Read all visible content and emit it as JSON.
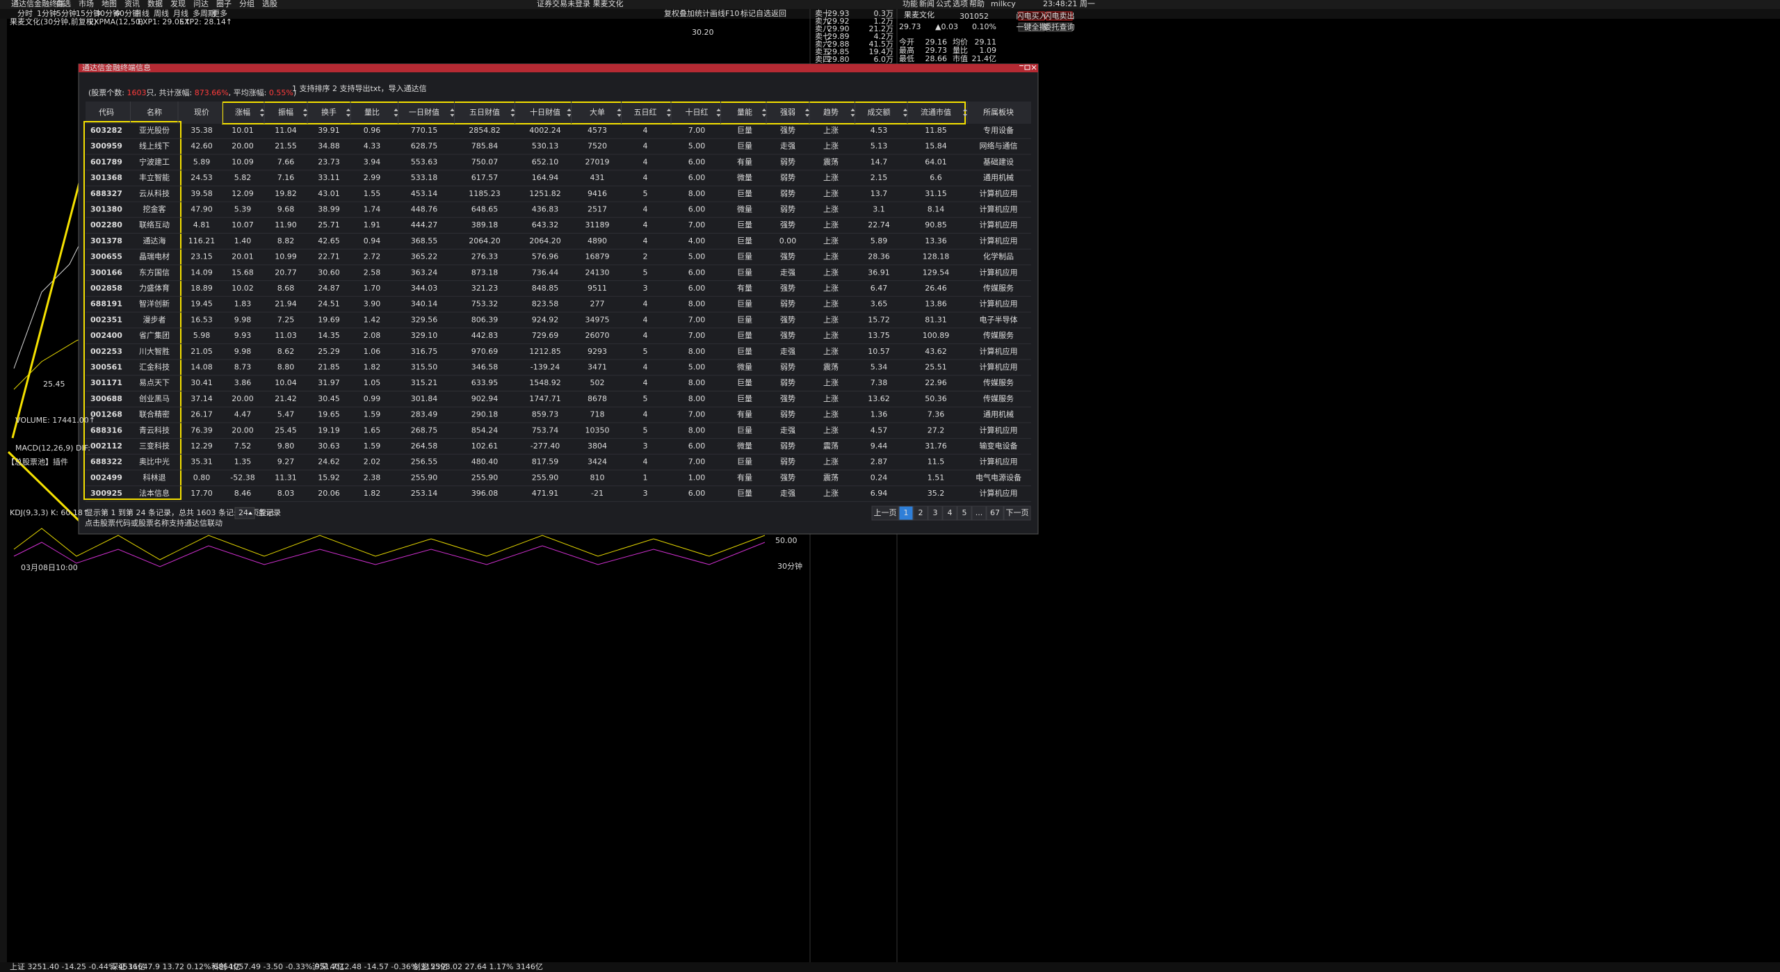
{
  "window": {
    "title": "通达信金融终端",
    "menu": [
      "自选",
      "市场",
      "地图",
      "资讯",
      "数据",
      "发现",
      "问达",
      "圈子",
      "分组",
      "选股"
    ],
    "notice": "证券交易未登录  果麦文化",
    "user": "milkcy",
    "right_menu": [
      "功能",
      "新闻",
      "公式",
      "选项",
      "帮助"
    ],
    "time": "23:48:21 周一"
  },
  "toolbar": {
    "periods": [
      "分时",
      "1分钟",
      "5分钟",
      "15分钟",
      "30分钟",
      "60分钟",
      "日线",
      "周线",
      "月线",
      "多周期",
      "更多"
    ],
    "tools": [
      "复权",
      "叠加",
      "统计",
      "画线",
      "F10",
      "标记",
      "自选",
      "返回"
    ]
  },
  "chart": {
    "title": "果麦文化(30分钟,前复权)",
    "indicator": "EXPMA(12,50)",
    "exp1": "EXP1: 29.05↑",
    "exp2": "EXP2: 28.14↑",
    "price_high": "30.20",
    "price_low": "25.45",
    "volume": "VOLUME: 17441.00↑",
    "macd": "MACD(12,26,9) DIF:",
    "plugin": "【总股票池】插件",
    "kdj": "KDJ(9,3,3) K: 60.18↑",
    "kdj_level": "50.00",
    "period": "30分钟",
    "date": "03月08日10:00"
  },
  "orderbook": [
    [
      "卖十",
      "29.93",
      "0.3万"
    ],
    [
      "卖九",
      "29.92",
      "1.2万"
    ],
    [
      "卖八",
      "29.90",
      "21.2万"
    ],
    [
      "卖七",
      "29.89",
      "4.2万"
    ],
    [
      "卖六",
      "29.88",
      "41.5万"
    ],
    [
      "卖五",
      "29.85",
      "19.4万"
    ],
    [
      "卖四",
      "29.80",
      "6.0万"
    ]
  ],
  "quote": {
    "name": "果麦文化",
    "code": "301052",
    "price": "29.73",
    "change": "▲0.03",
    "pct": "0.10%",
    "rows": [
      [
        "今开",
        "29.16",
        "均价",
        "29.11"
      ],
      [
        "最高",
        "29.73",
        "量比",
        "1.09"
      ],
      [
        "最低",
        "28.66",
        "市值",
        "21.4亿"
      ]
    ]
  },
  "buttons": [
    "闪电买入",
    "闪电卖出",
    "一键全撤",
    "委托查询"
  ],
  "dialog": {
    "title": "通达信金融终端信息",
    "summary": [
      {
        "text": "(股票个数: ",
        "red": false
      },
      {
        "text": "1603",
        "red": true
      },
      {
        "text": "只, 共计涨幅: ",
        "red": false
      },
      {
        "text": "873.66%",
        "red": true
      },
      {
        "text": ", 平均涨幅: ",
        "red": false
      },
      {
        "text": "0.55%",
        "red": true
      },
      {
        "text": ")",
        "red": false
      }
    ],
    "note": "1 支持排序 2 支持导出txt，导入通达信",
    "table": {
      "columns": [
        "代码",
        "名称",
        "现价",
        "涨幅",
        "振幅",
        "换手",
        "量比",
        "一日财值",
        "五日财值",
        "十日财值",
        "大单",
        "五日红",
        "十日红",
        "量能",
        "强弱",
        "趋势",
        "成交额",
        "流通市值",
        "所属板块"
      ],
      "rows": [
        [
          "603282",
          "亚光股份",
          "35.38",
          "10.01",
          "11.04",
          "39.91",
          "0.96",
          "770.15",
          "2854.82",
          "4002.24",
          "4573",
          "4",
          "7.00",
          "巨量",
          "强势",
          "上涨",
          "4.53",
          "11.85",
          "专用设备"
        ],
        [
          "300959",
          "线上线下",
          "42.60",
          "20.00",
          "21.55",
          "34.88",
          "4.33",
          "628.75",
          "785.84",
          "530.13",
          "7520",
          "4",
          "5.00",
          "巨量",
          "走强",
          "上涨",
          "5.13",
          "15.84",
          "网络与通信"
        ],
        [
          "601789",
          "宁波建工",
          "5.89",
          "10.09",
          "7.66",
          "23.73",
          "3.94",
          "553.63",
          "750.07",
          "652.10",
          "27019",
          "4",
          "6.00",
          "有量",
          "弱势",
          "震荡",
          "14.7",
          "64.01",
          "基础建设"
        ],
        [
          "301368",
          "丰立智能",
          "24.53",
          "5.82",
          "7.16",
          "33.11",
          "2.99",
          "533.18",
          "617.57",
          "164.94",
          "431",
          "4",
          "6.00",
          "微量",
          "弱势",
          "上涨",
          "2.15",
          "6.6",
          "通用机械"
        ],
        [
          "688327",
          "云从科技",
          "39.58",
          "12.09",
          "19.82",
          "43.01",
          "1.55",
          "453.14",
          "1185.23",
          "1251.82",
          "9416",
          "5",
          "8.00",
          "巨量",
          "弱势",
          "上涨",
          "13.7",
          "31.15",
          "计算机应用"
        ],
        [
          "301380",
          "挖金客",
          "47.90",
          "5.39",
          "9.68",
          "38.99",
          "1.74",
          "448.76",
          "648.65",
          "436.83",
          "2517",
          "4",
          "6.00",
          "微量",
          "弱势",
          "上涨",
          "3.1",
          "8.14",
          "计算机应用"
        ],
        [
          "002280",
          "联络互动",
          "4.81",
          "10.07",
          "11.90",
          "25.71",
          "1.91",
          "444.27",
          "389.18",
          "643.32",
          "31189",
          "4",
          "7.00",
          "巨量",
          "强势",
          "上涨",
          "22.74",
          "90.85",
          "计算机应用"
        ],
        [
          "301378",
          "通达海",
          "116.21",
          "1.40",
          "8.82",
          "42.65",
          "0.94",
          "368.55",
          "2064.20",
          "2064.20",
          "4890",
          "4",
          "4.00",
          "巨量",
          "0.00",
          "上涨",
          "5.89",
          "13.36",
          "计算机应用"
        ],
        [
          "300655",
          "晶瑞电材",
          "23.15",
          "20.01",
          "10.99",
          "22.71",
          "2.72",
          "365.22",
          "276.33",
          "576.96",
          "16879",
          "2",
          "5.00",
          "巨量",
          "强势",
          "上涨",
          "28.36",
          "128.18",
          "化学制品"
        ],
        [
          "300166",
          "东方国信",
          "14.09",
          "15.68",
          "20.77",
          "30.60",
          "2.58",
          "363.24",
          "873.18",
          "736.44",
          "24130",
          "5",
          "6.00",
          "巨量",
          "走强",
          "上涨",
          "36.91",
          "129.54",
          "计算机应用"
        ],
        [
          "002858",
          "力盛体育",
          "18.89",
          "10.02",
          "8.68",
          "24.87",
          "1.70",
          "344.03",
          "321.23",
          "848.85",
          "9511",
          "3",
          "6.00",
          "有量",
          "强势",
          "上涨",
          "6.47",
          "26.46",
          "传媒服务"
        ],
        [
          "688191",
          "智洋创新",
          "19.45",
          "1.83",
          "21.94",
          "24.51",
          "3.90",
          "340.14",
          "753.32",
          "823.58",
          "277",
          "4",
          "8.00",
          "巨量",
          "弱势",
          "上涨",
          "3.65",
          "13.86",
          "计算机应用"
        ],
        [
          "002351",
          "漫步者",
          "16.53",
          "9.98",
          "7.25",
          "19.69",
          "1.42",
          "329.56",
          "806.39",
          "924.92",
          "34975",
          "4",
          "7.00",
          "巨量",
          "强势",
          "上涨",
          "15.72",
          "81.31",
          "电子半导体"
        ],
        [
          "002400",
          "省广集团",
          "5.98",
          "9.93",
          "11.03",
          "14.35",
          "2.08",
          "329.10",
          "442.83",
          "729.69",
          "26070",
          "4",
          "7.00",
          "巨量",
          "强势",
          "上涨",
          "13.75",
          "100.89",
          "传媒服务"
        ],
        [
          "002253",
          "川大智胜",
          "21.05",
          "9.98",
          "8.62",
          "25.29",
          "1.06",
          "316.75",
          "970.69",
          "1212.85",
          "9293",
          "5",
          "8.00",
          "巨量",
          "走强",
          "上涨",
          "10.57",
          "43.62",
          "计算机应用"
        ],
        [
          "300561",
          "汇金科技",
          "14.08",
          "8.73",
          "8.80",
          "21.85",
          "1.82",
          "315.50",
          "346.58",
          "-139.24",
          "3471",
          "4",
          "5.00",
          "微量",
          "弱势",
          "震荡",
          "5.34",
          "25.51",
          "计算机应用"
        ],
        [
          "301171",
          "易点天下",
          "30.41",
          "3.86",
          "10.04",
          "31.97",
          "1.05",
          "315.21",
          "633.95",
          "1548.92",
          "502",
          "4",
          "8.00",
          "巨量",
          "弱势",
          "上涨",
          "7.38",
          "22.96",
          "传媒服务"
        ],
        [
          "300688",
          "创业黑马",
          "37.14",
          "20.00",
          "21.42",
          "30.45",
          "0.99",
          "301.84",
          "902.94",
          "1747.71",
          "8678",
          "5",
          "8.00",
          "巨量",
          "强势",
          "上涨",
          "13.62",
          "50.36",
          "传媒服务"
        ],
        [
          "001268",
          "联合精密",
          "26.17",
          "4.47",
          "5.47",
          "19.65",
          "1.59",
          "283.49",
          "290.18",
          "859.73",
          "718",
          "4",
          "7.00",
          "有量",
          "弱势",
          "上涨",
          "1.36",
          "7.36",
          "通用机械"
        ],
        [
          "688316",
          "青云科技",
          "76.39",
          "20.00",
          "25.45",
          "19.19",
          "1.65",
          "268.75",
          "854.24",
          "753.74",
          "10350",
          "5",
          "8.00",
          "巨量",
          "走强",
          "上涨",
          "4.57",
          "27.2",
          "计算机应用"
        ],
        [
          "002112",
          "三变科技",
          "12.29",
          "7.52",
          "9.80",
          "30.63",
          "1.59",
          "264.58",
          "102.61",
          "-277.40",
          "3804",
          "3",
          "6.00",
          "微量",
          "弱势",
          "震荡",
          "9.44",
          "31.76",
          "输变电设备"
        ],
        [
          "688322",
          "奥比中光",
          "35.31",
          "1.35",
          "9.27",
          "24.62",
          "2.02",
          "256.55",
          "480.40",
          "817.59",
          "3424",
          "4",
          "7.00",
          "巨量",
          "弱势",
          "上涨",
          "2.87",
          "11.5",
          "计算机应用"
        ],
        [
          "002499",
          "科林退",
          "0.80",
          "-52.38",
          "11.31",
          "15.92",
          "2.38",
          "255.90",
          "255.90",
          "255.90",
          "810",
          "1",
          "1.00",
          "有量",
          "强势",
          "震荡",
          "0.24",
          "1.51",
          "电气电源设备"
        ],
        [
          "300925",
          "法本信息",
          "17.70",
          "8.46",
          "8.03",
          "20.06",
          "1.82",
          "253.14",
          "396.08",
          "471.91",
          "-21",
          "3",
          "6.00",
          "巨量",
          "走强",
          "上涨",
          "6.94",
          "35.2",
          "计算机应用"
        ]
      ]
    },
    "footer": {
      "info": "显示第 1 到第 24 条记录，总共 1603 条记录   每页显示",
      "page_size": "24",
      "suffix": "条记录",
      "hint": "点击股票代码或股票名称支持通达信联动"
    },
    "pager": {
      "prev": "上一页",
      "pages": [
        "1",
        "2",
        "3",
        "4",
        "5",
        "...",
        "67"
      ],
      "next": "下一页"
    }
  },
  "status": [
    "上证 3251.40 -14.25 -0.44% 4536亿",
    "深证 11647.9 13.72 0.12% 6864亿",
    "科创 1057.49 -3.50 -0.33% 951.7亿",
    "沪深 4012.48 -14.57 -0.36% 3155亿",
    "创业 2398.02 27.64 1.17% 3146亿"
  ]
}
